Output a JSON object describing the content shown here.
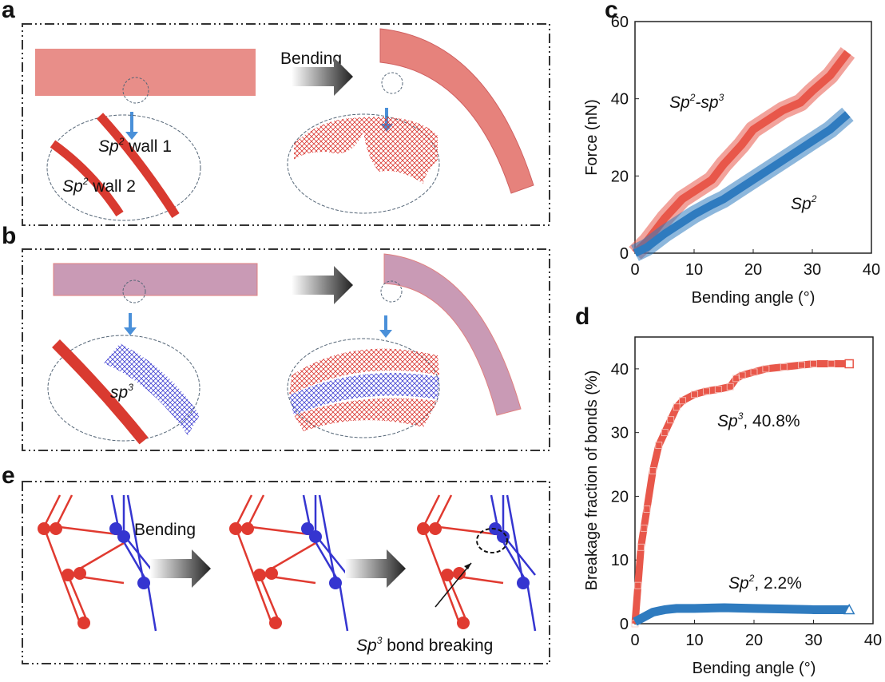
{
  "panels": {
    "a": {
      "letter": "a",
      "arrow_label": "Bending",
      "wall1_prefix": "Sp",
      "wall1_sup": "2",
      "wall1_suffix": " wall 1",
      "wall2_prefix": "Sp",
      "wall2_sup": "2",
      "wall2_suffix": " wall 2"
    },
    "b": {
      "letter": "b",
      "sp3_prefix": "sp",
      "sp3_sup": "3"
    },
    "e": {
      "letter": "e",
      "arrow_label": "Bending",
      "bond_prefix": "Sp",
      "bond_sup": "3",
      "bond_suffix": " bond breaking"
    },
    "c": {
      "letter": "c"
    },
    "d": {
      "letter": "d"
    }
  },
  "colors": {
    "sp2sp3": "#e8574a",
    "sp2": "#2f7bbf",
    "sp3_tube": "#c99ab5",
    "sp2_tube": "#e6827c"
  },
  "chart_data": [
    {
      "type": "line",
      "panel": "c",
      "xlabel": "Bending angle (°)",
      "ylabel": "Force (nN)",
      "xlim": [
        0,
        40
      ],
      "ylim": [
        0,
        60
      ],
      "xticks": [
        "0",
        "10",
        "20",
        "30",
        "40"
      ],
      "yticks": [
        "0",
        "20",
        "40",
        "60"
      ],
      "annotations": [
        {
          "prefix": "Sp",
          "sup": "2",
          "mid": "-sp",
          "sup2": "3"
        },
        {
          "prefix": "Sp",
          "sup": "2"
        }
      ],
      "series": [
        {
          "key": "sp2sp3",
          "x": [
            0,
            2,
            5,
            8,
            10,
            13,
            15,
            18,
            20,
            23,
            25,
            28,
            30,
            33,
            36
          ],
          "y": [
            0,
            3,
            9,
            14,
            16,
            19,
            23,
            28,
            32,
            35,
            37,
            39,
            42,
            46,
            52
          ]
        },
        {
          "key": "sp2",
          "x": [
            0,
            2,
            5,
            8,
            10,
            13,
            15,
            18,
            20,
            23,
            25,
            28,
            30,
            33,
            36
          ],
          "y": [
            0,
            1.5,
            5,
            8,
            10,
            12.5,
            14,
            17,
            19,
            22,
            24,
            27,
            29,
            32,
            36
          ]
        }
      ]
    },
    {
      "type": "scatter",
      "panel": "d",
      "xlabel": "Bending angle (°)",
      "ylabel": "Breakage fraction of bonds (%)",
      "xlim": [
        0,
        40
      ],
      "ylim": [
        0,
        45
      ],
      "xticks": [
        "0",
        "10",
        "20",
        "30",
        "40"
      ],
      "yticks": [
        "0",
        "10",
        "20",
        "30",
        "40"
      ],
      "annotations": [
        {
          "prefix": "Sp",
          "sup": "3",
          "suffix": ", 40.8%"
        },
        {
          "prefix": "Sp",
          "sup": "2",
          "suffix": ", 2.2%"
        }
      ],
      "series": [
        {
          "key": "sp3",
          "marker": "square",
          "x": [
            0,
            0.5,
            1,
            1.5,
            2,
            3,
            4,
            5,
            6,
            7,
            8,
            10,
            12,
            14,
            16,
            17,
            18,
            20,
            22,
            25,
            28,
            30,
            33,
            36
          ],
          "y": [
            0,
            6,
            12,
            15,
            18,
            24,
            28,
            30,
            32,
            34,
            35,
            36,
            36.5,
            36.8,
            37.2,
            38.5,
            39,
            39.5,
            40,
            40.3,
            40.6,
            40.8,
            40.8,
            40.8
          ]
        },
        {
          "key": "sp2",
          "marker": "triangle",
          "x": [
            0,
            1,
            2,
            3,
            4,
            5,
            6,
            7,
            10,
            15,
            20,
            25,
            30,
            36
          ],
          "y": [
            0.3,
            0.8,
            1.3,
            1.8,
            2.0,
            2.2,
            2.3,
            2.4,
            2.4,
            2.5,
            2.4,
            2.3,
            2.2,
            2.2
          ]
        }
      ]
    }
  ]
}
